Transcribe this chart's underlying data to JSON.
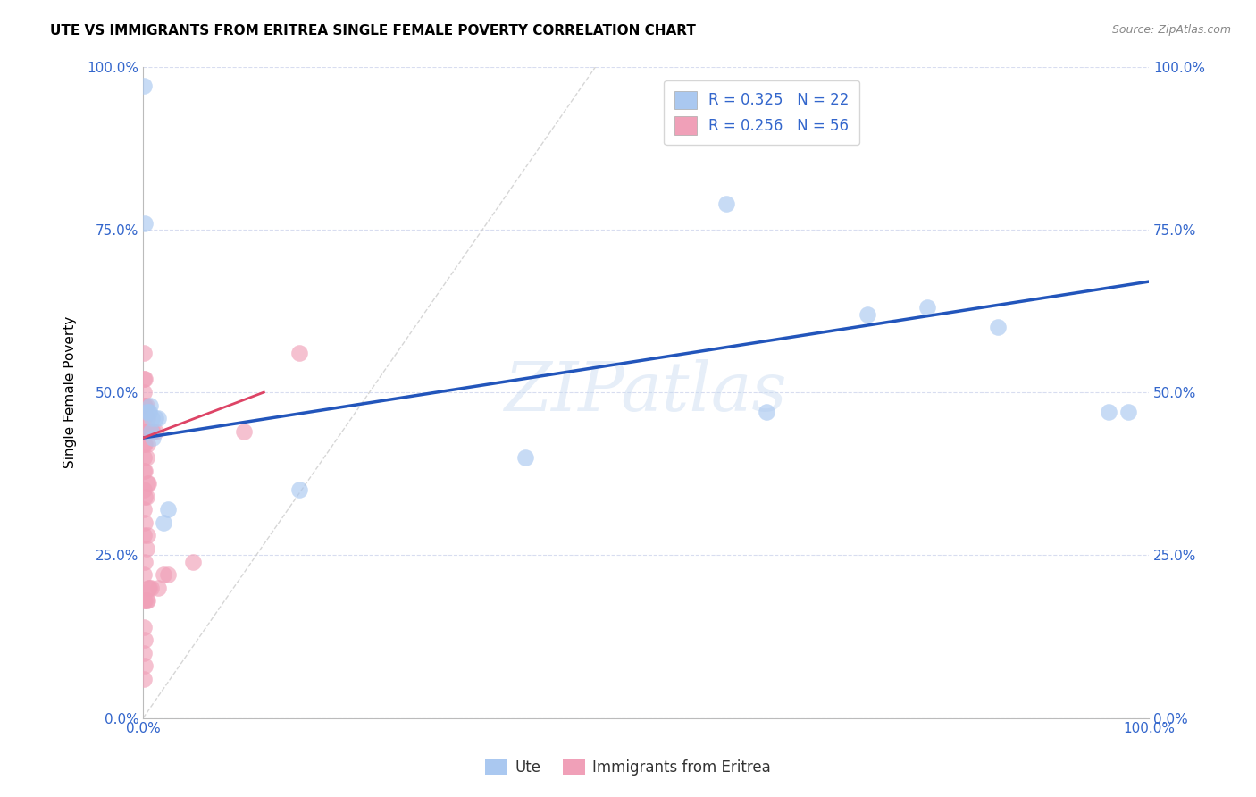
{
  "title": "UTE VS IMMIGRANTS FROM ERITREA SINGLE FEMALE POVERTY CORRELATION CHART",
  "source": "Source: ZipAtlas.com",
  "ylabel": "Single Female Poverty",
  "legend_label1": "Ute",
  "legend_label2": "Immigrants from Eritrea",
  "r1": 0.325,
  "n1": 22,
  "r2": 0.256,
  "n2": 56,
  "color_ute": "#aac8f0",
  "color_eritrea": "#f0a0b8",
  "color_line_ute": "#2255bb",
  "color_line_eritrea": "#dd4466",
  "watermark_text": "ZIPatlas",
  "ute_x": [
    0.001,
    0.002,
    0.003,
    0.005,
    0.006,
    0.007,
    0.008,
    0.009,
    0.01,
    0.012,
    0.015,
    0.02,
    0.025,
    0.155,
    0.38,
    0.58,
    0.62,
    0.72,
    0.78,
    0.85,
    0.96,
    0.98
  ],
  "ute_y": [
    0.97,
    0.76,
    0.47,
    0.47,
    0.47,
    0.48,
    0.44,
    0.46,
    0.43,
    0.46,
    0.46,
    0.3,
    0.32,
    0.35,
    0.4,
    0.79,
    0.47,
    0.62,
    0.63,
    0.6,
    0.47,
    0.47
  ],
  "eritrea_x": [
    0.001,
    0.001,
    0.001,
    0.001,
    0.001,
    0.001,
    0.001,
    0.001,
    0.001,
    0.001,
    0.001,
    0.001,
    0.001,
    0.001,
    0.001,
    0.001,
    0.001,
    0.002,
    0.002,
    0.002,
    0.002,
    0.002,
    0.002,
    0.002,
    0.002,
    0.002,
    0.002,
    0.002,
    0.003,
    0.003,
    0.003,
    0.003,
    0.003,
    0.003,
    0.004,
    0.004,
    0.004,
    0.004,
    0.004,
    0.005,
    0.005,
    0.005,
    0.006,
    0.006,
    0.007,
    0.008,
    0.008,
    0.009,
    0.01,
    0.012,
    0.015,
    0.02,
    0.025,
    0.05,
    0.1,
    0.155
  ],
  "eritrea_y": [
    0.56,
    0.52,
    0.5,
    0.48,
    0.46,
    0.44,
    0.42,
    0.4,
    0.38,
    0.35,
    0.32,
    0.28,
    0.22,
    0.18,
    0.14,
    0.1,
    0.06,
    0.52,
    0.48,
    0.44,
    0.42,
    0.38,
    0.34,
    0.3,
    0.24,
    0.18,
    0.12,
    0.08,
    0.48,
    0.44,
    0.4,
    0.34,
    0.26,
    0.18,
    0.46,
    0.42,
    0.36,
    0.28,
    0.18,
    0.44,
    0.36,
    0.2,
    0.44,
    0.2,
    0.44,
    0.44,
    0.2,
    0.44,
    0.44,
    0.44,
    0.2,
    0.22,
    0.22,
    0.24,
    0.44,
    0.56
  ],
  "ute_line_x0": 0.0,
  "ute_line_y0": 0.43,
  "ute_line_x1": 1.0,
  "ute_line_y1": 0.67,
  "eritrea_line_x0": 0.0,
  "eritrea_line_y0": 0.43,
  "eritrea_line_x1": 0.12,
  "eritrea_line_y1": 0.5,
  "xmin": 0.0,
  "xmax": 1.0,
  "ymin": 0.0,
  "ymax": 1.0,
  "xticks": [
    0.0,
    1.0
  ],
  "yticks": [
    0.0,
    0.25,
    0.5,
    0.75,
    1.0
  ],
  "xticklabels": [
    "0.0%",
    "100.0%"
  ],
  "yticklabels": [
    "0.0%",
    "25.0%",
    "50.0%",
    "75.0%",
    "100.0%"
  ]
}
